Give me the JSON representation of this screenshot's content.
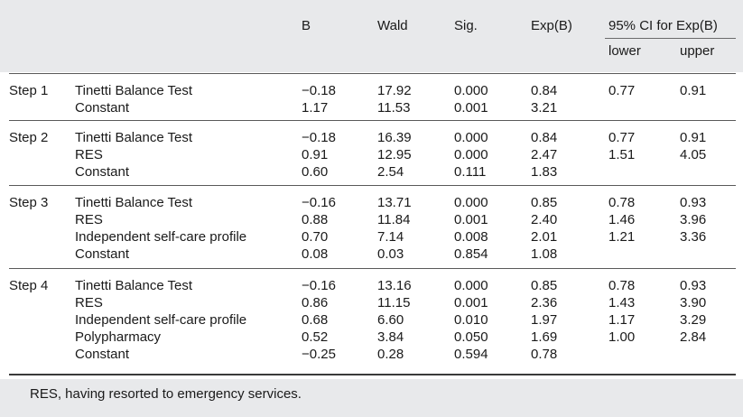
{
  "header": {
    "b": "B",
    "wald": "Wald",
    "sig": "Sig.",
    "expb": "Exp(B)",
    "ci": "95% CI for Exp(B)",
    "lower": "lower",
    "upper": "upper"
  },
  "steps": [
    {
      "label": "Step 1",
      "rows": [
        {
          "variable": "Tinetti Balance Test",
          "b": "−0.18",
          "wald": "17.92",
          "sig": "0.000",
          "expb": "0.84",
          "lower": "0.77",
          "upper": "0.91"
        },
        {
          "variable": "Constant",
          "b": "1.17",
          "wald": "11.53",
          "sig": "0.001",
          "expb": "3.21",
          "lower": "",
          "upper": ""
        }
      ]
    },
    {
      "label": "Step 2",
      "rows": [
        {
          "variable": "Tinetti Balance Test",
          "b": "−0.18",
          "wald": "16.39",
          "sig": "0.000",
          "expb": "0.84",
          "lower": "0.77",
          "upper": "0.91"
        },
        {
          "variable": "RES",
          "b": "0.91",
          "wald": "12.95",
          "sig": "0.000",
          "expb": "2.47",
          "lower": "1.51",
          "upper": "4.05"
        },
        {
          "variable": "Constant",
          "b": "0.60",
          "wald": "2.54",
          "sig": "0.111",
          "expb": "1.83",
          "lower": "",
          "upper": ""
        }
      ]
    },
    {
      "label": "Step 3",
      "rows": [
        {
          "variable": "Tinetti Balance Test",
          "b": "−0.16",
          "wald": "13.71",
          "sig": "0.000",
          "expb": "0.85",
          "lower": "0.78",
          "upper": "0.93"
        },
        {
          "variable": "RES",
          "b": "0.88",
          "wald": "11.84",
          "sig": "0.001",
          "expb": "2.40",
          "lower": "1.46",
          "upper": "3.96"
        },
        {
          "variable": "Independent self-care profile",
          "b": "0.70",
          "wald": "7.14",
          "sig": "0.008",
          "expb": "2.01",
          "lower": "1.21",
          "upper": "3.36"
        },
        {
          "variable": "Constant",
          "b": "0.08",
          "wald": "0.03",
          "sig": "0.854",
          "expb": "1.08",
          "lower": "",
          "upper": ""
        }
      ]
    },
    {
      "label": "Step 4",
      "rows": [
        {
          "variable": "Tinetti Balance Test",
          "b": "−0.16",
          "wald": "13.16",
          "sig": "0.000",
          "expb": "0.85",
          "lower": "0.78",
          "upper": "0.93"
        },
        {
          "variable": "RES",
          "b": "0.86",
          "wald": "11.15",
          "sig": "0.001",
          "expb": "2.36",
          "lower": "1.43",
          "upper": "3.90"
        },
        {
          "variable": "Independent self-care profile",
          "b": "0.68",
          "wald": "6.60",
          "sig": "0.010",
          "expb": "1.97",
          "lower": "1.17",
          "upper": "3.29"
        },
        {
          "variable": "Polypharmacy",
          "b": "0.52",
          "wald": "3.84",
          "sig": "0.050",
          "expb": "1.69",
          "lower": "1.00",
          "upper": "2.84"
        },
        {
          "variable": "Constant",
          "b": "−0.25",
          "wald": "0.28",
          "sig": "0.594",
          "expb": "0.78",
          "lower": "",
          "upper": ""
        }
      ]
    }
  ],
  "footnote": "RES, having resorted to emergency services."
}
